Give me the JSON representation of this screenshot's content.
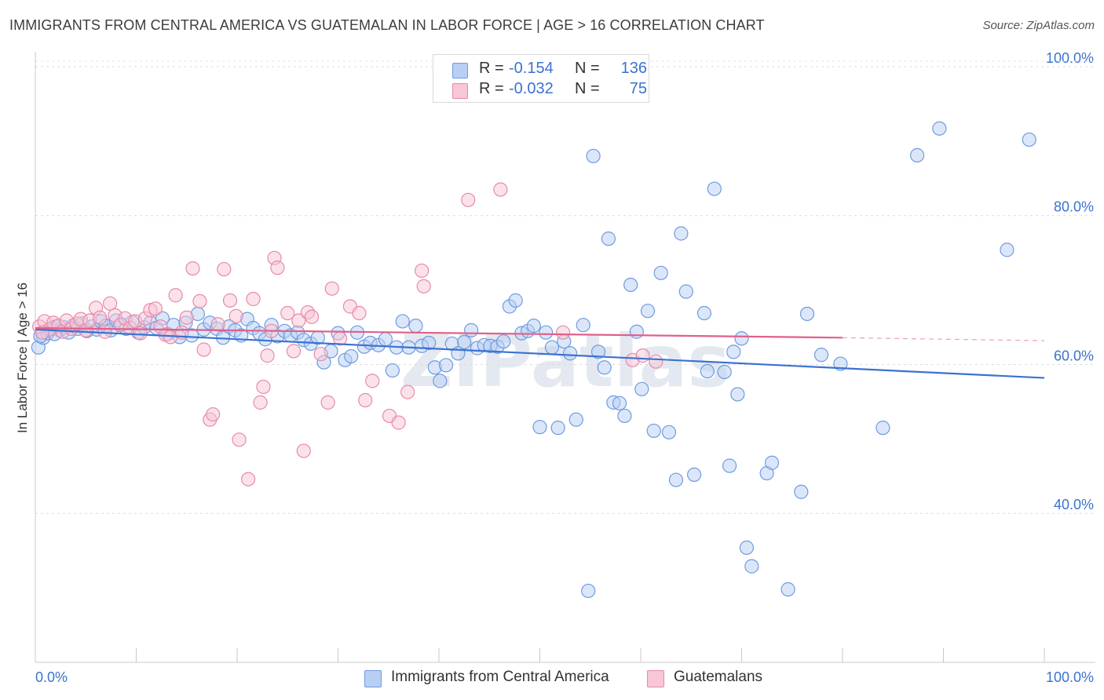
{
  "title": "IMMIGRANTS FROM CENTRAL AMERICA VS GUATEMALAN IN LABOR FORCE | AGE > 16 CORRELATION CHART",
  "source": "Source: ZipAtlas.com",
  "watermark": "ZIPatlas",
  "legend": {
    "r_label": "R =",
    "n_label": "N =",
    "rows": [
      {
        "r": "-0.154",
        "n": "136",
        "fill": "#b8cff4",
        "stroke": "#6f9be0"
      },
      {
        "r": "-0.032",
        "n": "75",
        "fill": "#f8c6d6",
        "stroke": "#e88aa8"
      }
    ]
  },
  "chart_data": {
    "type": "scatter",
    "title": "IMMIGRANTS FROM CENTRAL AMERICA VS GUATEMALAN IN LABOR FORCE | AGE > 16 CORRELATION CHART",
    "xlabel": "",
    "ylabel": "In Labor Force | Age > 16",
    "xlim": [
      0,
      100
    ],
    "ylim": [
      20,
      102
    ],
    "x_tick_labels": [
      "0.0%",
      "100.0%"
    ],
    "y_ticks": [
      40,
      60,
      80,
      100
    ],
    "y_tick_labels": [
      "40.0%",
      "60.0%",
      "80.0%",
      "100.0%"
    ],
    "grid": true,
    "colors": {
      "blue": "#3b72d1",
      "pink": "#e0608a",
      "blue_fill": "#b8cff4",
      "pink_fill": "#f8c6d6"
    },
    "series": [
      {
        "name": "Immigrants from Central America",
        "color": "#3b72d1",
        "trend": {
          "x": [
            0,
            100
          ],
          "y": [
            64.7,
            58.2
          ]
        },
        "points": [
          [
            0.3,
            62.3
          ],
          [
            0.8,
            63.6
          ],
          [
            1.2,
            64.2
          ],
          [
            1.6,
            64.9
          ],
          [
            2.0,
            65.1
          ],
          [
            2.4,
            64.6
          ],
          [
            2.8,
            65.0
          ],
          [
            3.3,
            64.3
          ],
          [
            3.7,
            65.2
          ],
          [
            4.2,
            64.8
          ],
          [
            4.6,
            65.5
          ],
          [
            5.1,
            64.5
          ],
          [
            5.6,
            65.1
          ],
          [
            6.1,
            64.7
          ],
          [
            6.5,
            65.8
          ],
          [
            7.0,
            65.2
          ],
          [
            7.5,
            64.6
          ],
          [
            8.0,
            65.9
          ],
          [
            8.5,
            65.4
          ],
          [
            9.0,
            64.8
          ],
          [
            9.6,
            65.7
          ],
          [
            10.2,
            64.3
          ],
          [
            10.8,
            65.0
          ],
          [
            11.4,
            65.6
          ],
          [
            12.0,
            64.9
          ],
          [
            12.6,
            66.2
          ],
          [
            13.1,
            64.1
          ],
          [
            13.7,
            65.3
          ],
          [
            14.3,
            63.7
          ],
          [
            14.9,
            65.6
          ],
          [
            15.5,
            63.9
          ],
          [
            16.1,
            66.8
          ],
          [
            16.7,
            64.7
          ],
          [
            17.3,
            65.6
          ],
          [
            18.0,
            64.8
          ],
          [
            18.6,
            63.6
          ],
          [
            19.2,
            65.1
          ],
          [
            19.8,
            64.6
          ],
          [
            20.4,
            63.9
          ],
          [
            21.0,
            66.1
          ],
          [
            21.6,
            64.9
          ],
          [
            22.2,
            64.2
          ],
          [
            22.8,
            63.4
          ],
          [
            23.4,
            65.3
          ],
          [
            24.0,
            63.8
          ],
          [
            24.7,
            64.5
          ],
          [
            25.3,
            63.9
          ],
          [
            26.0,
            64.3
          ],
          [
            26.6,
            63.3
          ],
          [
            27.3,
            62.8
          ],
          [
            28.0,
            63.6
          ],
          [
            28.6,
            60.3
          ],
          [
            29.3,
            61.8
          ],
          [
            30.0,
            64.2
          ],
          [
            30.7,
            60.6
          ],
          [
            31.3,
            61.1
          ],
          [
            31.9,
            64.3
          ],
          [
            32.6,
            62.4
          ],
          [
            33.2,
            62.9
          ],
          [
            34.0,
            62.6
          ],
          [
            34.7,
            63.4
          ],
          [
            35.4,
            59.2
          ],
          [
            35.8,
            62.3
          ],
          [
            36.4,
            65.8
          ],
          [
            37.0,
            62.3
          ],
          [
            37.7,
            65.2
          ],
          [
            38.3,
            62.5
          ],
          [
            39.0,
            62.9
          ],
          [
            39.6,
            59.6
          ],
          [
            40.1,
            57.8
          ],
          [
            40.7,
            59.9
          ],
          [
            41.3,
            62.8
          ],
          [
            41.9,
            61.5
          ],
          [
            42.5,
            63.0
          ],
          [
            43.2,
            64.6
          ],
          [
            43.8,
            62.2
          ],
          [
            44.5,
            62.6
          ],
          [
            45.1,
            62.5
          ],
          [
            45.8,
            62.4
          ],
          [
            46.4,
            63.1
          ],
          [
            47.0,
            67.8
          ],
          [
            47.6,
            68.6
          ],
          [
            48.2,
            64.2
          ],
          [
            48.8,
            64.5
          ],
          [
            49.4,
            65.2
          ],
          [
            50.0,
            51.6
          ],
          [
            50.6,
            64.3
          ],
          [
            51.2,
            62.3
          ],
          [
            51.8,
            51.5
          ],
          [
            52.4,
            63.1
          ],
          [
            53.0,
            61.5
          ],
          [
            53.6,
            52.6
          ],
          [
            54.3,
            65.3
          ],
          [
            54.8,
            29.6
          ],
          [
            55.3,
            88.0
          ],
          [
            55.8,
            61.7
          ],
          [
            56.4,
            59.6
          ],
          [
            56.8,
            76.9
          ],
          [
            57.3,
            54.9
          ],
          [
            57.9,
            54.8
          ],
          [
            58.4,
            53.1
          ],
          [
            59.0,
            70.7
          ],
          [
            59.6,
            64.4
          ],
          [
            60.1,
            56.7
          ],
          [
            60.7,
            67.2
          ],
          [
            61.3,
            51.1
          ],
          [
            62.0,
            72.3
          ],
          [
            62.8,
            50.9
          ],
          [
            63.5,
            44.5
          ],
          [
            64.0,
            77.6
          ],
          [
            64.5,
            69.8
          ],
          [
            65.3,
            45.2
          ],
          [
            66.3,
            66.9
          ],
          [
            66.6,
            59.1
          ],
          [
            67.3,
            83.6
          ],
          [
            68.3,
            59.0
          ],
          [
            68.8,
            46.4
          ],
          [
            69.2,
            61.7
          ],
          [
            69.6,
            56.0
          ],
          [
            70.0,
            63.5
          ],
          [
            70.5,
            35.4
          ],
          [
            71.0,
            32.9
          ],
          [
            72.5,
            45.4
          ],
          [
            73.0,
            46.8
          ],
          [
            74.6,
            29.8
          ],
          [
            75.9,
            42.9
          ],
          [
            76.5,
            66.8
          ],
          [
            77.9,
            61.3
          ],
          [
            79.8,
            60.1
          ],
          [
            84.0,
            51.5
          ],
          [
            87.4,
            88.1
          ],
          [
            89.6,
            91.7
          ],
          [
            96.3,
            75.4
          ],
          [
            98.5,
            90.2
          ],
          [
            0.5,
            63.8
          ],
          [
            1.9,
            64.1
          ]
        ]
      },
      {
        "name": "Guatemalans",
        "color": "#e0608a",
        "trend": {
          "x": [
            0,
            80
          ],
          "y": [
            64.9,
            63.6
          ]
        },
        "trend_dashed": {
          "x": [
            80,
            100
          ],
          "y": [
            63.6,
            63.2
          ]
        },
        "points": [
          [
            0.4,
            65.1
          ],
          [
            0.9,
            65.8
          ],
          [
            1.4,
            64.7
          ],
          [
            1.8,
            65.6
          ],
          [
            2.3,
            65.2
          ],
          [
            2.7,
            64.4
          ],
          [
            3.1,
            65.9
          ],
          [
            3.6,
            64.8
          ],
          [
            4.1,
            65.5
          ],
          [
            4.5,
            66.1
          ],
          [
            5.0,
            64.6
          ],
          [
            5.4,
            65.9
          ],
          [
            6.0,
            67.6
          ],
          [
            6.4,
            66.3
          ],
          [
            6.9,
            64.4
          ],
          [
            7.4,
            68.2
          ],
          [
            7.9,
            66.6
          ],
          [
            8.4,
            65.3
          ],
          [
            8.9,
            66.2
          ],
          [
            9.4,
            64.9
          ],
          [
            9.9,
            65.8
          ],
          [
            10.4,
            64.2
          ],
          [
            10.9,
            66.2
          ],
          [
            11.4,
            67.3
          ],
          [
            11.9,
            67.5
          ],
          [
            12.4,
            65.1
          ],
          [
            12.9,
            64.0
          ],
          [
            13.4,
            63.7
          ],
          [
            13.9,
            69.3
          ],
          [
            14.5,
            64.3
          ],
          [
            15.0,
            66.3
          ],
          [
            15.6,
            72.9
          ],
          [
            16.3,
            68.5
          ],
          [
            16.7,
            62.0
          ],
          [
            17.3,
            52.6
          ],
          [
            17.6,
            53.3
          ],
          [
            18.1,
            65.4
          ],
          [
            18.7,
            72.8
          ],
          [
            19.3,
            68.6
          ],
          [
            19.9,
            66.5
          ],
          [
            20.2,
            49.9
          ],
          [
            21.1,
            44.6
          ],
          [
            21.6,
            68.8
          ],
          [
            22.3,
            54.9
          ],
          [
            22.6,
            57.0
          ],
          [
            23.0,
            61.2
          ],
          [
            23.4,
            64.5
          ],
          [
            23.7,
            74.3
          ],
          [
            24.0,
            73.0
          ],
          [
            25.0,
            66.9
          ],
          [
            25.6,
            61.8
          ],
          [
            26.1,
            65.9
          ],
          [
            26.6,
            48.4
          ],
          [
            27.0,
            67.0
          ],
          [
            27.4,
            66.4
          ],
          [
            28.3,
            61.4
          ],
          [
            29.0,
            54.9
          ],
          [
            29.4,
            70.2
          ],
          [
            30.2,
            63.5
          ],
          [
            31.2,
            67.8
          ],
          [
            32.1,
            66.9
          ],
          [
            32.7,
            55.2
          ],
          [
            33.4,
            57.8
          ],
          [
            35.1,
            53.1
          ],
          [
            36.0,
            52.2
          ],
          [
            36.9,
            56.3
          ],
          [
            38.3,
            72.6
          ],
          [
            38.5,
            70.5
          ],
          [
            42.9,
            82.1
          ],
          [
            46.1,
            83.5
          ],
          [
            52.3,
            64.3
          ],
          [
            59.2,
            60.6
          ],
          [
            60.2,
            61.2
          ],
          [
            61.5,
            60.4
          ],
          [
            0.7,
            64.3
          ]
        ]
      }
    ]
  },
  "bottom_legend": [
    "Immigrants from Central America",
    "Guatemalans"
  ]
}
